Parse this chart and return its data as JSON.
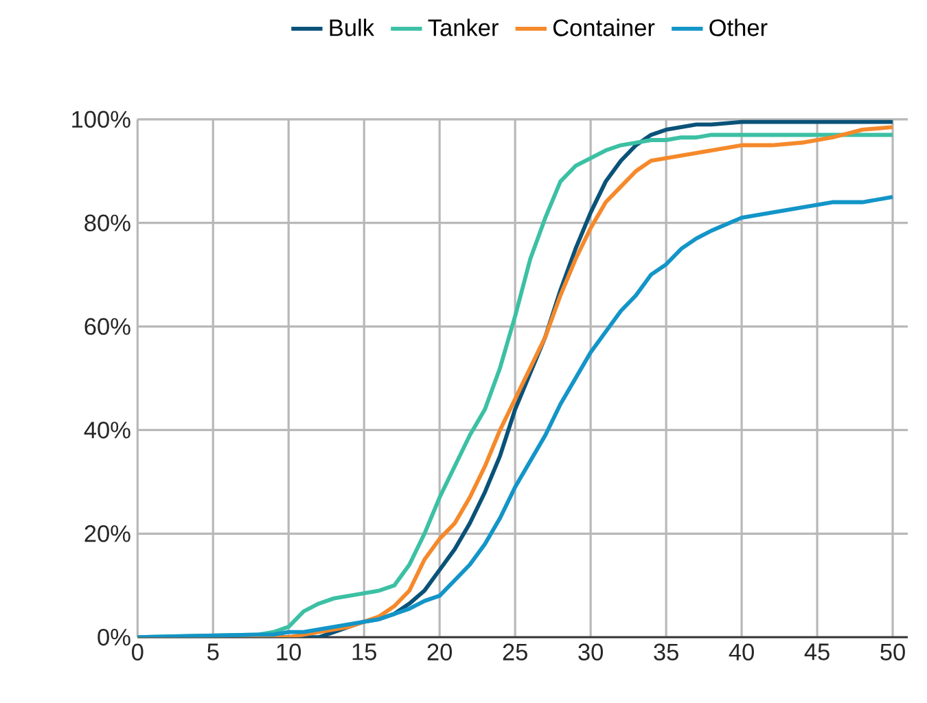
{
  "chart_data": {
    "type": "line",
    "x": [
      0,
      8,
      9,
      10,
      11,
      12,
      13,
      14,
      15,
      16,
      17,
      18,
      19,
      20,
      21,
      22,
      23,
      24,
      25,
      26,
      27,
      28,
      29,
      30,
      31,
      32,
      33,
      34,
      35,
      36,
      37,
      38,
      40,
      42,
      44,
      46,
      48,
      50
    ],
    "series": [
      {
        "name": "Bulk",
        "color": "#0a5278",
        "values": [
          0,
          0,
          0,
          0,
          0,
          0,
          1,
          2,
          3,
          3.5,
          4.5,
          6.5,
          9,
          13,
          17,
          22,
          28,
          35,
          44,
          51,
          58,
          67,
          75,
          82,
          88,
          92,
          95,
          97,
          98,
          98.5,
          99,
          99,
          99.5,
          99.5,
          99.5,
          99.5,
          99.5,
          99.5
        ]
      },
      {
        "name": "Tanker",
        "color": "#3cc0a4",
        "values": [
          0,
          0.5,
          1,
          2,
          5,
          6.5,
          7.5,
          8,
          8.5,
          9,
          10,
          14,
          20,
          27,
          33,
          39,
          44,
          52,
          62,
          73,
          81,
          88,
          91,
          92.5,
          94,
          95,
          95.5,
          96,
          96,
          96.5,
          96.5,
          97,
          97,
          97,
          97,
          97,
          97,
          97
        ]
      },
      {
        "name": "Container",
        "color": "#f5892b",
        "values": [
          0,
          0,
          0,
          0,
          0.5,
          1,
          1.5,
          2,
          3,
          4,
          6,
          9,
          15,
          19,
          22,
          27,
          33,
          40,
          46,
          52,
          58,
          66,
          73,
          79,
          84,
          87,
          90,
          92,
          92.5,
          93,
          93.5,
          94,
          95,
          95,
          95.5,
          96.5,
          98,
          98.5
        ]
      },
      {
        "name": "Other",
        "color": "#1395c8",
        "values": [
          0,
          0.5,
          0.5,
          1,
          1,
          1.5,
          2,
          2.5,
          3,
          3.5,
          4.5,
          5.5,
          7,
          8,
          11,
          14,
          18,
          23,
          29,
          34,
          39,
          45,
          50,
          55,
          59,
          63,
          66,
          70,
          72,
          75,
          77,
          78.5,
          81,
          82,
          83,
          84,
          84,
          85
        ]
      }
    ],
    "xlim": [
      0,
      51
    ],
    "xticks": [
      0,
      5,
      10,
      15,
      20,
      25,
      30,
      35,
      40,
      45,
      50
    ],
    "ylim": [
      0,
      100
    ],
    "yticks": [
      {
        "value": 0,
        "label": "0%"
      },
      {
        "value": 20,
        "label": "20%"
      },
      {
        "value": 40,
        "label": "40%"
      },
      {
        "value": 60,
        "label": "60%"
      },
      {
        "value": 80,
        "label": "80%"
      },
      {
        "value": 100,
        "label": "100%"
      }
    ],
    "grid": true,
    "legend": "top",
    "marker": "none",
    "line_style": "solid"
  }
}
